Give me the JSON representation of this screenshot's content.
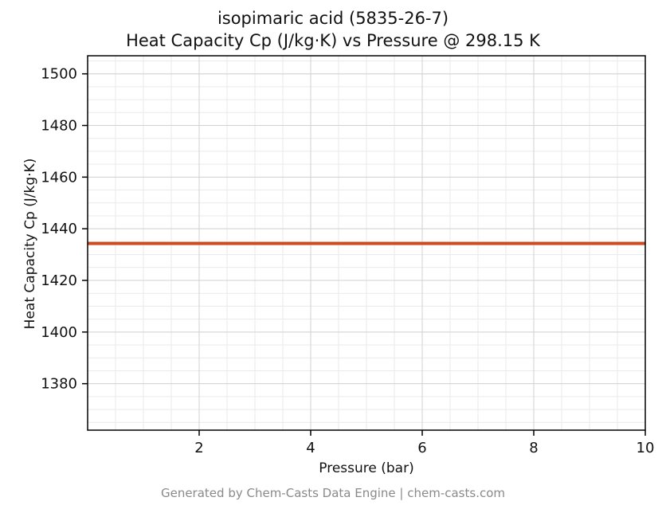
{
  "title": {
    "line1": "isopimaric acid (5835-26-7)",
    "line2": "Heat Capacity Cp (J/kg·K) vs Pressure @ 298.15 K"
  },
  "footer": "Generated by Chem-Casts Data Engine | chem-casts.com",
  "chart_data": {
    "type": "line",
    "title": "isopimaric acid (5835-26-7) Heat Capacity Cp (J/kg·K) vs Pressure @ 298.15 K",
    "xlabel": "Pressure (bar)",
    "ylabel": "Heat Capacity Cp (J/kg·K)",
    "xlim": [
      0,
      10
    ],
    "ylim": [
      1362,
      1507
    ],
    "x_major_ticks": [
      2,
      4,
      6,
      8,
      10
    ],
    "y_major_ticks": [
      1380,
      1400,
      1420,
      1440,
      1460,
      1480,
      1500
    ],
    "x_minor_step": 0.5,
    "y_minor_step": 5,
    "grid": true,
    "series": [
      {
        "name": "Cp",
        "x": [
          0,
          10
        ],
        "values": [
          1434.3,
          1434.3
        ],
        "color": "#cf4c23",
        "line_width": 4
      }
    ],
    "constant_value_note": "Cp is constant at approximately 1434.3 J/kg·K across 0–10 bar at 298.15 K"
  },
  "colors": {
    "line": "#cf4c23",
    "grid_major": "#d2d2d2",
    "grid_minor": "#eaeaea",
    "axis": "#000000",
    "tick_label": "#111111",
    "footer_text": "#8a8a8a",
    "background": "#ffffff"
  }
}
